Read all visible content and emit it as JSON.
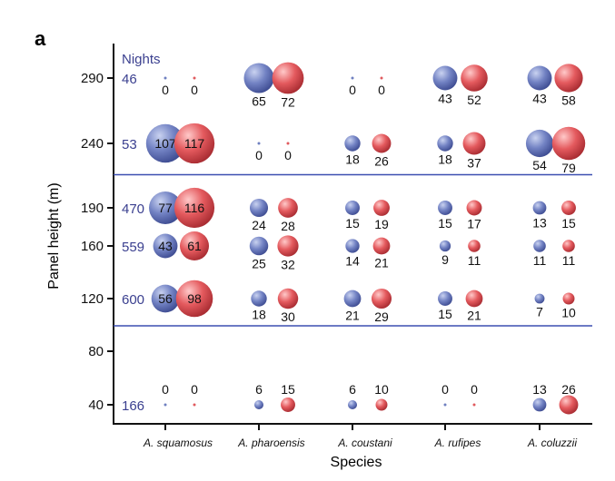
{
  "chart_data": {
    "type": "scatter",
    "panel_label": "a",
    "xlabel": "Species",
    "ylabel": "Panel height (m)",
    "nights_header": "Nights",
    "categories": [
      "A. squamosus",
      "A. pharoensis",
      "A. coustani",
      "A. rufipes",
      "A. coluzzii"
    ],
    "y_ticks": [
      290,
      240,
      190,
      160,
      120,
      80,
      40
    ],
    "rows": [
      {
        "height": 290,
        "nights": "46",
        "blue": [
          0,
          65,
          0,
          43,
          43
        ],
        "red": [
          0,
          72,
          0,
          52,
          58
        ]
      },
      {
        "height": 240,
        "nights": "53",
        "blue": [
          107,
          0,
          18,
          18,
          54
        ],
        "red": [
          117,
          0,
          26,
          37,
          79
        ]
      },
      {
        "height": 190,
        "nights": "470",
        "blue": [
          77,
          24,
          15,
          15,
          13
        ],
        "red": [
          116,
          28,
          19,
          17,
          15
        ]
      },
      {
        "height": 160,
        "nights": "559",
        "blue": [
          43,
          25,
          14,
          9,
          11
        ],
        "red": [
          61,
          32,
          21,
          11,
          11
        ]
      },
      {
        "height": 120,
        "nights": "600",
        "blue": [
          56,
          18,
          21,
          15,
          7
        ],
        "red": [
          98,
          30,
          29,
          21,
          10
        ]
      },
      {
        "height": 40,
        "nights": "166",
        "blue": [
          0,
          6,
          6,
          0,
          13
        ],
        "red": [
          0,
          15,
          10,
          0,
          26
        ]
      }
    ],
    "reference_lines_between_heights": [
      [
        190,
        240
      ],
      [
        80,
        120
      ]
    ],
    "colors": {
      "blue": "#6f80c0",
      "red": "#e05a5e",
      "reference_line": "#3b4fb0",
      "nights_text": "#3a3f8f"
    },
    "grid": false
  }
}
